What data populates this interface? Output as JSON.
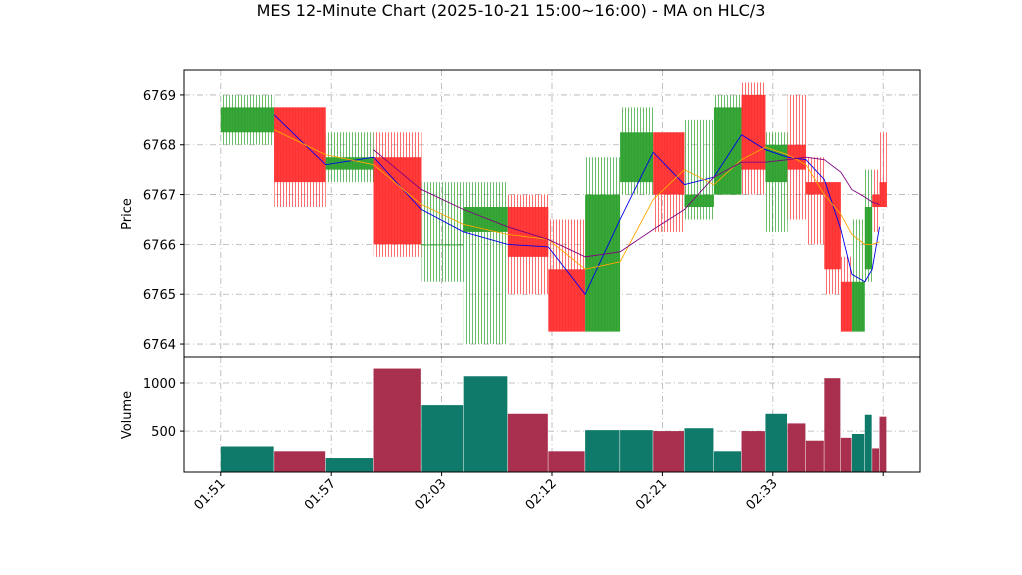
{
  "chart_data": {
    "type": "candlestick",
    "title": "MES 12-Minute Chart (2025-10-21 15:00~16:00) - MA on HLC/3",
    "ylabel": "Price",
    "volume_ylabel": "Volume",
    "x": [
      0,
      2.9,
      5.7,
      8.3,
      10.9,
      13.2,
      15.6,
      17.8,
      19.8,
      21.7,
      23.5,
      25.2,
      26.8,
      28.3,
      29.6,
      30.8,
      31.8,
      32.8,
      33.7,
      34.3,
      35,
      35.4,
      35.8
    ],
    "open": [
      6768.25,
      6768.75,
      6767.5,
      6767.75,
      6766,
      6766.25,
      6766.75,
      6765.5,
      6764.25,
      6767.25,
      6768.25,
      6766.75,
      6767,
      6769,
      6767.25,
      6768,
      6767.25,
      6767.25,
      6765.25,
      6764.25,
      6765.5,
      6767,
      6767.25
    ],
    "high": [
      6769,
      6768.75,
      6768.25,
      6768.25,
      6767.25,
      6767.25,
      6767,
      6766.5,
      6767.75,
      6768.75,
      6768.25,
      6768.5,
      6769,
      6769.25,
      6768.25,
      6769,
      6767.75,
      6767.25,
      6765.75,
      6766.5,
      6767.5,
      6767.5,
      6768.25
    ],
    "low": [
      6768,
      6766.75,
      6767.25,
      6765.75,
      6765.25,
      6764,
      6765,
      6764.25,
      6764.25,
      6767,
      6766.25,
      6766.5,
      6767,
      6767,
      6766.25,
      6766.5,
      6766,
      6765,
      6764.25,
      6764.25,
      6765.25,
      6766.25,
      6766.75
    ],
    "close": [
      6768.75,
      6767.25,
      6767.75,
      6766,
      6766,
      6766.75,
      6765.75,
      6764.25,
      6767,
      6768.25,
      6767,
      6767,
      6768.75,
      6767.5,
      6768,
      6767.5,
      6767,
      6765.5,
      6764.25,
      6765.25,
      6766.75,
      6766.75,
      6766.75
    ],
    "volume": [
      340,
      290,
      220,
      1150,
      770,
      1070,
      680,
      290,
      510,
      510,
      500,
      530,
      290,
      500,
      680,
      580,
      400,
      1050,
      430,
      470,
      670,
      320,
      650
    ],
    "up_color": "#2ca02c",
    "down_color": "#ff2f2f",
    "volume_up_color": "#0f7a6a",
    "volume_down_color": "#a8304e",
    "ma": [
      {
        "color": "#0000ee",
        "values": [
          null,
          6768.6,
          6767.6,
          6767.75,
          6766.7,
          6766.25,
          6766.0,
          6765.95,
          6765.0,
          6766.5,
          6767.85,
          6767.2,
          6767.35,
          6768.2,
          6767.9,
          6767.75,
          6767.7,
          6767.3,
          6766.3,
          6765.4,
          6765.25,
          6765.5,
          6766.35
        ]
      },
      {
        "color": "#ffa500",
        "values": [
          null,
          6768.3,
          6767.8,
          6767.6,
          6766.8,
          6766.4,
          6766.2,
          6766.1,
          6765.5,
          6765.65,
          6766.9,
          6767.5,
          6767.2,
          6767.7,
          6767.95,
          6767.8,
          6767.6,
          6767.0,
          6766.6,
          6766.2,
          6766.0,
          6766.0,
          6766.05
        ]
      },
      {
        "color": "#800080",
        "values": [
          null,
          null,
          null,
          6767.9,
          6767.1,
          6766.7,
          6766.35,
          6766.1,
          6765.75,
          6765.85,
          6766.3,
          6766.7,
          6767.35,
          6767.65,
          6767.65,
          6767.7,
          6767.75,
          6767.7,
          6767.45,
          6767.1,
          6766.95,
          6766.85,
          6766.8
        ]
      }
    ],
    "xlim": [
      -2,
      38
    ],
    "xticks": [
      {
        "value": 0,
        "label": "01:51"
      },
      {
        "value": 6,
        "label": "01:57"
      },
      {
        "value": 12,
        "label": "02:03"
      },
      {
        "value": 18,
        "label": "02:12"
      },
      {
        "value": 24,
        "label": "02:21"
      },
      {
        "value": 30,
        "label": "02:33"
      },
      {
        "value": 36,
        "label": ""
      }
    ],
    "ylim": [
      6763.74,
      6769.5
    ],
    "yticks": [
      6764,
      6765,
      6766,
      6767,
      6768,
      6769
    ],
    "volume_ylim": [
      75,
      1270
    ],
    "volume_yticks": [
      500,
      1000
    ],
    "grid": true
  }
}
